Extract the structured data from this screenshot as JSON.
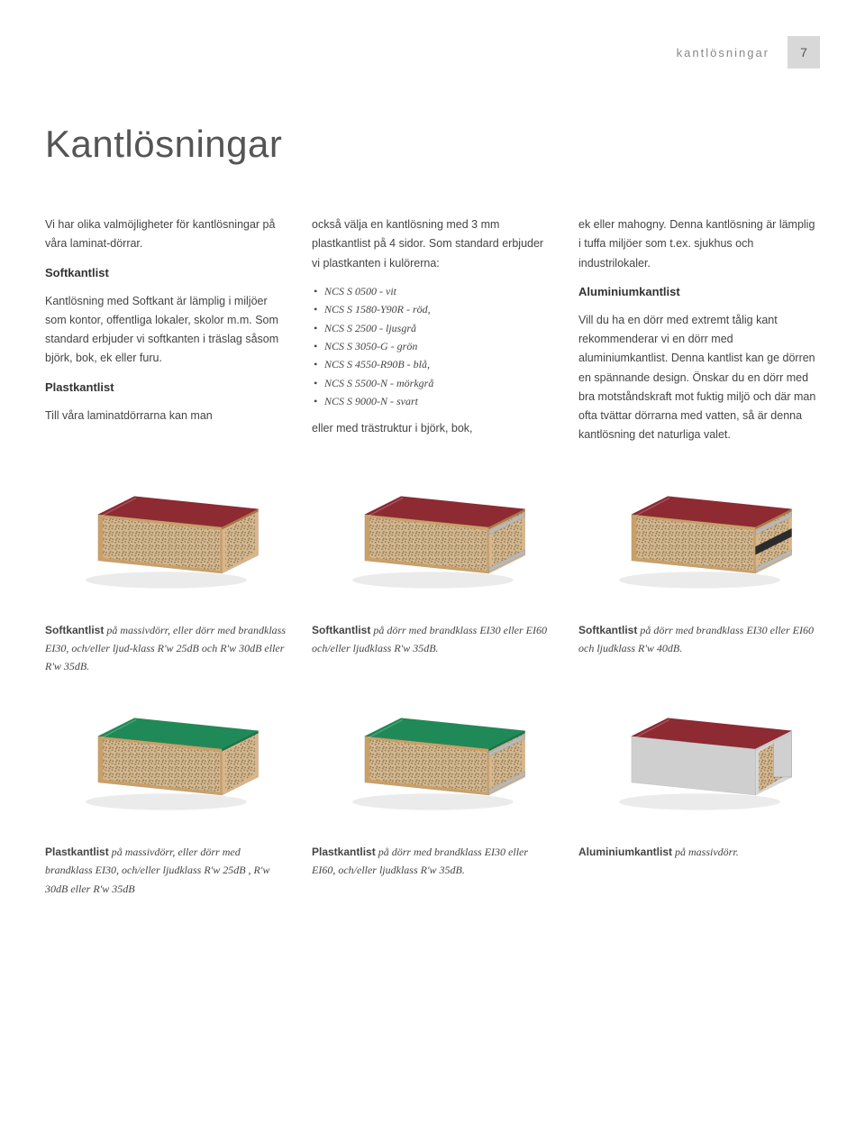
{
  "header": {
    "section_label": "kantlösningar",
    "page_number": "7"
  },
  "title": "Kantlösningar",
  "intro": "Vi har olika valmöjligheter för kantlösningar på våra laminat-dörrar.",
  "soft": {
    "heading": "Softkantlist",
    "body1": "Kantlösning med Softkant är lämplig i miljöer som kontor, offentliga lokaler, skolor m.m. Som standard erbjuder vi softkanten i träslag såsom björk, bok, ek eller furu."
  },
  "plast": {
    "heading": "Plastkantlist",
    "body1": "Till våra laminatdörrarna kan man",
    "body2": "också välja en kantlösning med 3 mm plastkantlist på 4 sidor. Som standard erbjuder vi plastkanten i kulörerna:",
    "bullets": [
      "NCS S 0500 - vit",
      "NCS S 1580-Y90R - röd,",
      "NCS S 2500 - ljusgrå",
      "NCS S 3050-G - grön",
      "NCS S 4550-R90B - blå,",
      "NCS S 5500-N - mörkgrå",
      "NCS S 9000-N - svart"
    ],
    "body3": "eller med trästruktur i björk, bok,"
  },
  "col3a": "ek eller mahogny. Denna kantlösning är lämplig i tuffa miljöer som t.ex. sjukhus och industrilokaler.",
  "alu": {
    "heading": "Aluminiumkantlist",
    "body": "Vill du ha en dörr med extremt tålig kant  rekommenderar vi en dörr med aluminiumkantlist. Denna kantlist  kan ge dörren en spännande design. Önskar du en dörr med bra motståndskraft mot fuktig miljö och där man ofta tvättar dörrarna med vatten, så är denna kantlösning det naturliga valet."
  },
  "captions_row1": [
    {
      "bold": "Softkantlist",
      "rest": " på massivdörr, eller dörr med brandklass EI30, och/eller ljud-klass R'w 25dB och R'w 30dB eller R'w 35dB."
    },
    {
      "bold": "Softkantlist",
      "rest": " på dörr med brandklass EI30 eller EI60 och/eller ljudklass R'w 35dB."
    },
    {
      "bold": "Softkantlist",
      "rest": " på dörr med brandklass EI30 eller EI60 och ljudklass R'w 40dB."
    }
  ],
  "captions_row2": [
    {
      "bold": "Plastkantlist",
      "rest": " på massivdörr, eller dörr med brandklass EI30, och/eller ljudklass R'w 25dB , R'w 30dB eller R'w 35dB"
    },
    {
      "bold": "Plastkantlist",
      "rest": " på dörr med brandklass EI30 eller EI60, och/eller ljudklass R'w 35dB."
    },
    {
      "bold": "Aluminiumkantlist",
      "rest": " på massivdörr."
    }
  ],
  "blocks": {
    "row1": [
      {
        "top": "#8e2a32",
        "side": "#c9a06a",
        "front_fill": "speckle",
        "edge": "#a8774a"
      },
      {
        "top": "#8e2a32",
        "side": "#c9a06a",
        "front_fill": "speckle",
        "edge": "#a8774a",
        "rails": "#b8b8b8"
      },
      {
        "top": "#8e2a32",
        "side": "#c9a06a",
        "front_fill": "speckle",
        "edge": "#a8774a",
        "rails": "#b8b8b8",
        "rail_mid": true
      }
    ],
    "row2": [
      {
        "top": "#1f8a57",
        "side": "#c9a06a",
        "front_fill": "speckle",
        "edge": "#1a7249"
      },
      {
        "top": "#1f8a57",
        "side": "#c9a06a",
        "front_fill": "speckle",
        "edge": "#1a7249",
        "rails": "#b8b8b8"
      },
      {
        "top": "#8e2a32",
        "side": "#c9c9c9",
        "front_fill": "speckle",
        "edge": "#c9c9c9",
        "alu": true
      }
    ]
  },
  "colors": {
    "wood_light": "#d9b589",
    "wood_mid": "#c9a06a",
    "wood_dark": "#9e7448",
    "speckle_bg": "#d1b892",
    "speckle_dot": "#8a6a3f"
  }
}
